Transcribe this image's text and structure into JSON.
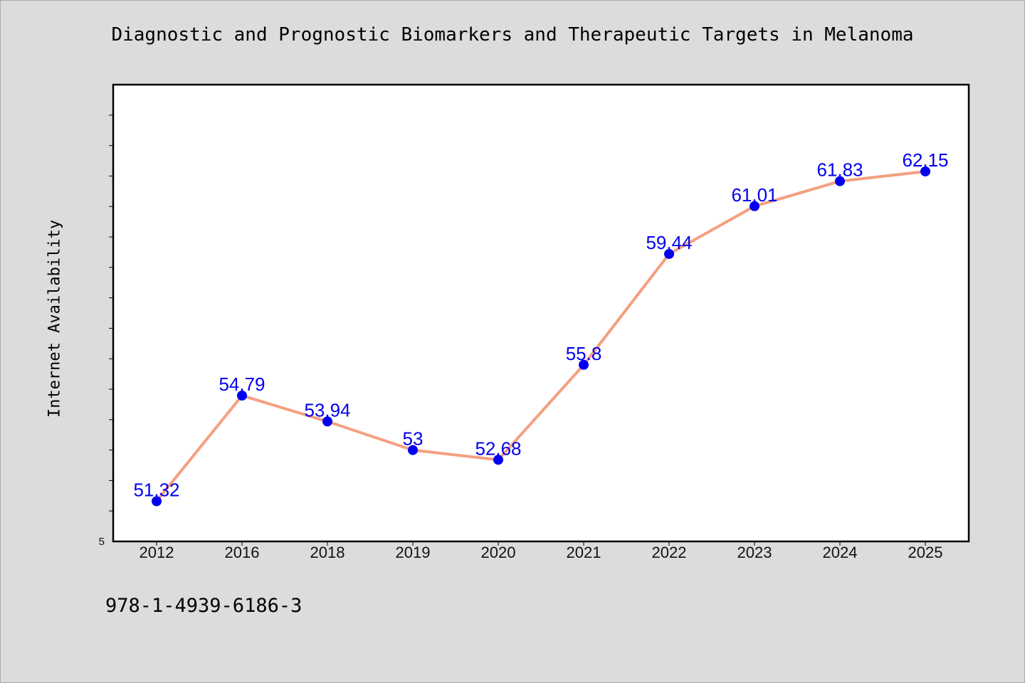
{
  "chart_data": {
    "type": "line",
    "title": "Diagnostic and Prognostic Biomarkers and Therapeutic Targets in Melanoma",
    "xlabel": "",
    "ylabel": "Internet Availability",
    "categories": [
      "2012",
      "2016",
      "2018",
      "2019",
      "2020",
      "2021",
      "2022",
      "2023",
      "2024",
      "2025"
    ],
    "series": [
      {
        "values": [
          51.32,
          54.79,
          53.94,
          53,
          52.68,
          55.8,
          59.44,
          61.01,
          61.83,
          62.15
        ],
        "data_labels": [
          "51.32",
          "54.79",
          "53.94",
          "53",
          "52.68",
          "55.8",
          "59.44",
          "61.01",
          "61.83",
          "62.15"
        ]
      }
    ],
    "ylim": [
      50,
      65
    ],
    "y_tick_labels": [
      "5"
    ],
    "grid": false,
    "line_color": "#f4a080",
    "marker_color": "#0000ee",
    "label_color": "#0000ee"
  },
  "footer": {
    "text": "978-1-4939-6186-3"
  }
}
